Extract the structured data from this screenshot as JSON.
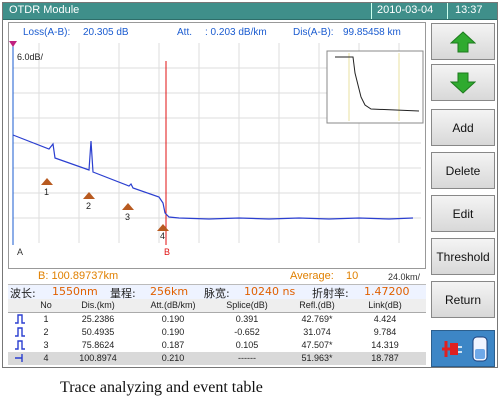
{
  "titlebar": {
    "title": "OTDR Module",
    "date": "2010-03-04",
    "time": "13:37"
  },
  "graph_header": {
    "loss_label": "Loss(A-B):",
    "loss_value": "20.305 dB",
    "att_label": "Att.",
    "att_value": ": 0.203 dB/km",
    "dis_label": "Dis(A-B):",
    "dis_value": "99.85458 km"
  },
  "graph": {
    "y_scale": "6.0dB/",
    "marker_a": "A",
    "marker_b": "B",
    "x_scale": "24.0km/"
  },
  "infobar": {
    "b_position": "B: 100.89737km",
    "average_label": "Average:",
    "average_value": "10"
  },
  "params": {
    "wavelength_label": "波长:",
    "wavelength_value": "1550nm",
    "range_label": "量程:",
    "range_value": "256km",
    "pulse_label": "脉宽:",
    "pulse_value": "10240 ns",
    "ior_label": "折射率:",
    "ior_value": "1.47200"
  },
  "table": {
    "headers": [
      "No",
      "Dis.(km)",
      "Att.(dB/km)",
      "Splice(dB)",
      "Refl.(dB)",
      "Link(dB)"
    ],
    "rows": [
      {
        "no": "1",
        "dis": "25.2386",
        "att": "0.190",
        "splice": "0.391",
        "refl": "42.769*",
        "link": "4.424"
      },
      {
        "no": "2",
        "dis": "50.4935",
        "att": "0.190",
        "splice": "-0.652",
        "refl": "31.074",
        "link": "9.784"
      },
      {
        "no": "3",
        "dis": "75.8624",
        "att": "0.187",
        "splice": "0.105",
        "refl": "47.507*",
        "link": "14.319"
      },
      {
        "no": "4",
        "dis": "100.8974",
        "att": "0.210",
        "splice": "------",
        "refl": "51.963*",
        "link": "18.787"
      }
    ]
  },
  "event_labels": [
    "1",
    "2",
    "3",
    "4"
  ],
  "sidebar": {
    "add": "Add",
    "delete": "Delete",
    "edit": "Edit",
    "threshold": "Threshold",
    "return": "Return"
  },
  "caption": "Trace analyzing and event table",
  "colors": {
    "titlebar": "#3f8f8a",
    "trace": "#2b3fd0",
    "marker_b": "#e01010",
    "accent": "#e06000",
    "arrow": "#2faa2f"
  }
}
